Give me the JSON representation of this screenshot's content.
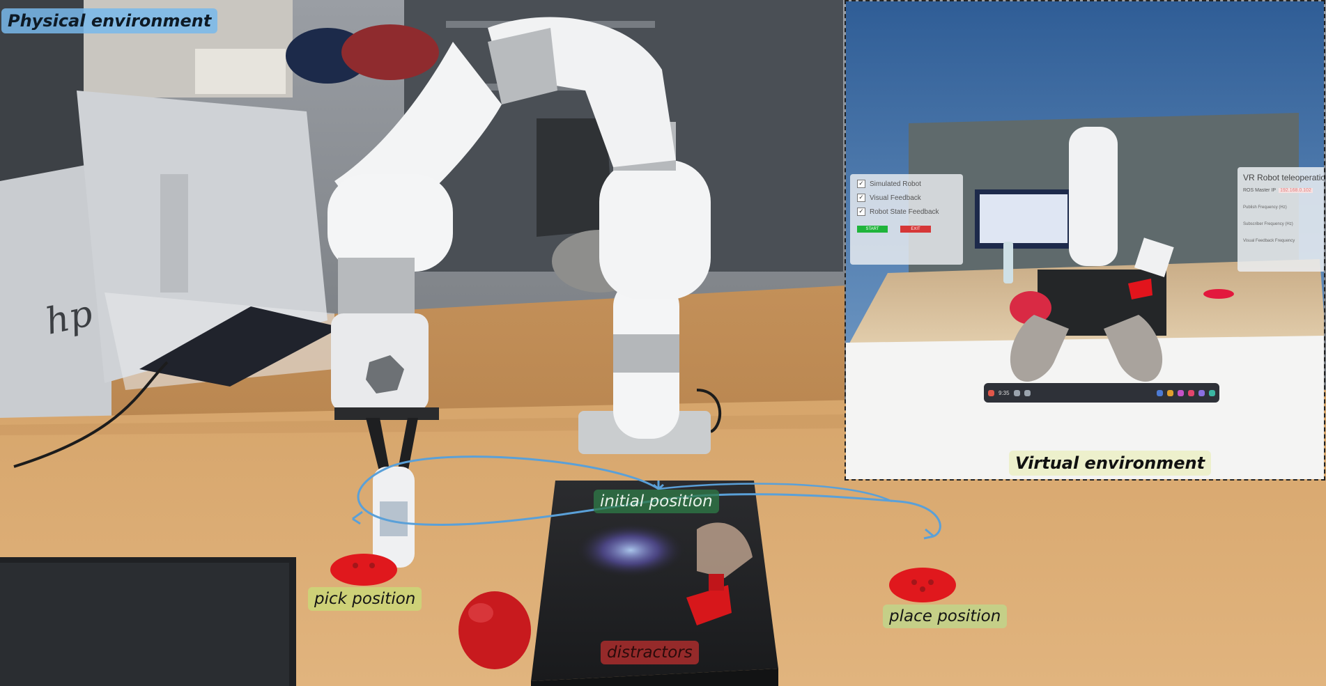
{
  "labels": {
    "physical": "Physical environment",
    "virtual": "Virtual environment",
    "initial": "initial position",
    "pick": "pick position",
    "place": "place position",
    "distractors": "distractors"
  },
  "vr_menu_left": {
    "options": [
      "Simulated Robot",
      "Visual Feedback",
      "Robot State Feedback"
    ],
    "start_label": "START",
    "exit_label": "EXIT"
  },
  "vr_menu_right": {
    "title": "VR Robot teleoperatio",
    "ip_label": "ROS Master IP",
    "ip_value": "192.168.0.102",
    "slider_1": "Publish Frequency (Hz)",
    "slider_2": "Subscriber Frequency (Hz)",
    "slider_3": "Visual Feedback Frequency"
  },
  "vr_taskbar": {
    "clock": "9:35"
  },
  "monitor_brand": "hp",
  "colors": {
    "physical_label": "#78b9eb",
    "virtual_label": "#ecf0c8",
    "initial_label": "#2e7846",
    "pick_label": "#c8dc78",
    "place_label": "#bed78c",
    "distractors_label": "#aa2d2d",
    "trajectory": "#5aa0d8",
    "disc": "#e0181d"
  }
}
